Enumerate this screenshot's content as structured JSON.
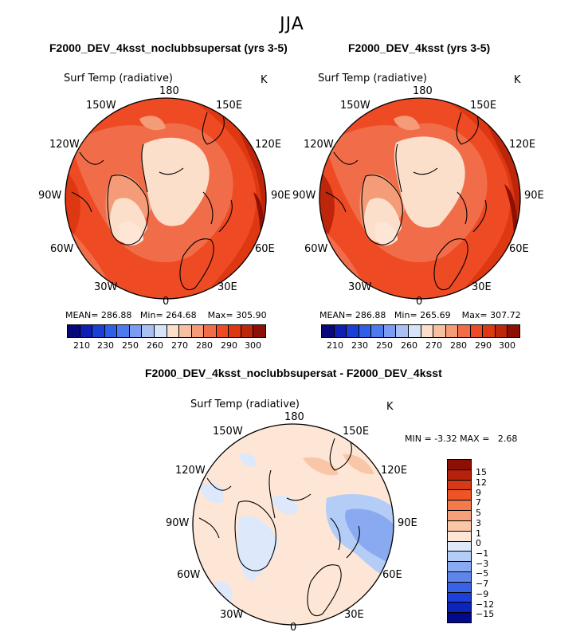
{
  "figure": {
    "title": "JJA"
  },
  "colors": {
    "abs_scale": [
      "#08087a",
      "#0e20b4",
      "#1a3fd6",
      "#2f5fe8",
      "#4d7bef",
      "#7a9cf2",
      "#a8c0f3",
      "#d6e4fa",
      "#fbdfcb",
      "#f8c0a3",
      "#f49b78",
      "#f16d49",
      "#ee4b25",
      "#de3813",
      "#bd260b",
      "#8e1005"
    ],
    "diff_scale": [
      "#8e1005",
      "#b5210a",
      "#d63a16",
      "#ee5526",
      "#f27a4b",
      "#f6a07a",
      "#f9c6a8",
      "#fde6d6",
      "#dde9fb",
      "#b4cdf6",
      "#89aaf0",
      "#5e86ea",
      "#3a62e4",
      "#1e3fd9",
      "#0c23bc",
      "#02098a"
    ]
  },
  "chart_data": [
    {
      "type": "heatmap",
      "projection": "north-polar-stereographic",
      "title": "F2000_DEV_4ksst_noclubbsupersat (yrs 3-5)",
      "variable": "Surf Temp (radiative)",
      "units": "K",
      "lon_labels": [
        "180",
        "150E",
        "120E",
        "90E",
        "60E",
        "30E",
        "0",
        "30W",
        "60W",
        "90W",
        "120W",
        "150W"
      ],
      "stats": {
        "mean_label": "MEAN=",
        "mean": "286.88",
        "min_label": "Min=",
        "min": "264.68",
        "max_label": "Max=",
        "max": "305.90"
      },
      "colorbar_ticks": [
        "210",
        "230",
        "250",
        "260",
        "270",
        "280",
        "290",
        "300"
      ]
    },
    {
      "type": "heatmap",
      "projection": "north-polar-stereographic",
      "title": "F2000_DEV_4ksst (yrs 3-5)",
      "variable": "Surf Temp (radiative)",
      "units": "K",
      "lon_labels": [
        "180",
        "150E",
        "120E",
        "90E",
        "60E",
        "30E",
        "0",
        "30W",
        "60W",
        "90W",
        "120W",
        "150W"
      ],
      "stats": {
        "mean_label": "MEAN=",
        "mean": "286.88",
        "min_label": "Min=",
        "min": "265.69",
        "max_label": "Max=",
        "max": "307.72"
      },
      "colorbar_ticks": [
        "210",
        "230",
        "250",
        "260",
        "270",
        "280",
        "290",
        "300"
      ]
    },
    {
      "type": "heatmap",
      "projection": "north-polar-stereographic",
      "title": "F2000_DEV_4ksst_noclubbsupersat - F2000_DEV_4ksst",
      "variable": "Surf Temp (radiative)",
      "units": "K",
      "lon_labels": [
        "180",
        "150E",
        "120E",
        "90E",
        "60E",
        "30E",
        "0",
        "30W",
        "60W",
        "90W",
        "120W",
        "150W"
      ],
      "stats": {
        "min_label": "MIN =",
        "min": "-3.32",
        "max_label": "MAX =",
        "max": "2.68"
      },
      "colorbar_ticks": [
        "15",
        "12",
        "9",
        "7",
        "5",
        "3",
        "1",
        "0",
        "−1",
        "−3",
        "−5",
        "−7",
        "−9",
        "−12",
        "−15"
      ]
    }
  ]
}
